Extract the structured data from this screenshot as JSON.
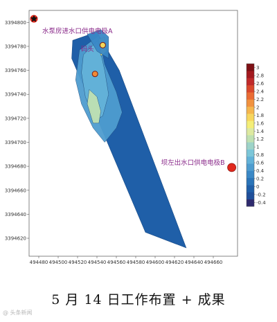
{
  "chart_data": {
    "type": "heatmap",
    "title": "",
    "xlabel": "",
    "ylabel": "",
    "x_ticks": [
      494480,
      494500,
      494520,
      494540,
      494560,
      494580,
      494600,
      494620,
      494640,
      494660
    ],
    "y_ticks": [
      3394800,
      3394780,
      3394760,
      3394740,
      3394720,
      3394700,
      3394680,
      3394660,
      3394640,
      3394620
    ],
    "xlim": [
      494470,
      494685
    ],
    "ylim": [
      3394605,
      3394810
    ],
    "colorbar": {
      "ticks": [
        3,
        2.8,
        2.6,
        2.4,
        2.2,
        2,
        1.8,
        1.6,
        1.4,
        1.2,
        1,
        0.8,
        0.6,
        0.4,
        0.2,
        0,
        -0.2,
        -0.4
      ],
      "range": [
        -0.5,
        3.1
      ],
      "colors": [
        "#2e2a6e",
        "#1f4f9a",
        "#1f5fa8",
        "#2a74b8",
        "#3a88c6",
        "#4e9ccf",
        "#63b2d8",
        "#7cc6d8",
        "#9dd3c8",
        "#bfe0b2",
        "#dde9a0",
        "#f4ee78",
        "#f7d65e",
        "#f5b64e",
        "#f1923f",
        "#ea6c34",
        "#d9482c",
        "#c02a2a",
        "#a3191f",
        "#7e1015"
      ]
    },
    "survey_area": [
      [
        494515,
        3394785
      ],
      [
        494540,
        3394792
      ],
      [
        494563,
        3394760
      ],
      [
        494632,
        3394612
      ],
      [
        494590,
        3394625
      ],
      [
        494514,
        3394770
      ]
    ],
    "zones": [
      {
        "value": 0.4,
        "polygon": [
          [
            494522,
            3394777
          ],
          [
            494542,
            3394789
          ],
          [
            494548,
            3394765
          ],
          [
            494560,
            3394742
          ],
          [
            494566,
            3394725
          ],
          [
            494560,
            3394712
          ],
          [
            494548,
            3394700
          ],
          [
            494536,
            3394712
          ],
          [
            494524,
            3394732
          ],
          [
            494518,
            3394752
          ]
        ]
      },
      {
        "value": 0.7,
        "polygon": [
          [
            494526,
            3394773
          ],
          [
            494541,
            3394785
          ],
          [
            494548,
            3394760
          ],
          [
            494552,
            3394740
          ],
          [
            494546,
            3394722
          ],
          [
            494538,
            3394718
          ],
          [
            494528,
            3394738
          ],
          [
            494524,
            3394758
          ]
        ]
      },
      {
        "value": 1.2,
        "polygon": [
          [
            494532,
            3394744
          ],
          [
            494540,
            3394738
          ],
          [
            494544,
            3394726
          ],
          [
            494542,
            3394716
          ],
          [
            494536,
            3394716
          ],
          [
            494530,
            3394732
          ]
        ]
      },
      {
        "value": 1.6,
        "polygon": [
          [
            494542,
            3394786
          ],
          [
            494548,
            3394788
          ],
          [
            494550,
            3394776
          ],
          [
            494544,
            3394772
          ]
        ]
      },
      {
        "value": 0.3,
        "polygon": [
          [
            494530,
            3394790
          ],
          [
            494544,
            3394794
          ],
          [
            494552,
            3394788
          ],
          [
            494552,
            3394770
          ],
          [
            494540,
            3394776
          ]
        ]
      }
    ],
    "electrodes": [
      {
        "label": "水泵房进水口供电电极A",
        "x": 494475,
        "y": 3394803
      },
      {
        "label": "坝左出水口供电电极B",
        "x": 494679,
        "y": 3394679
      }
    ],
    "annotations": [
      {
        "label": "码头",
        "x": 494537,
        "y": 3394776
      }
    ],
    "markers": [
      {
        "x": 494546,
        "y": 3394781,
        "style": "ring-yellow"
      },
      {
        "x": 494538,
        "y": 3394757,
        "style": "ring-orange"
      }
    ]
  },
  "caption": "5 月 14 日工作布置 + 成果",
  "watermark": "@ 头条新闻"
}
